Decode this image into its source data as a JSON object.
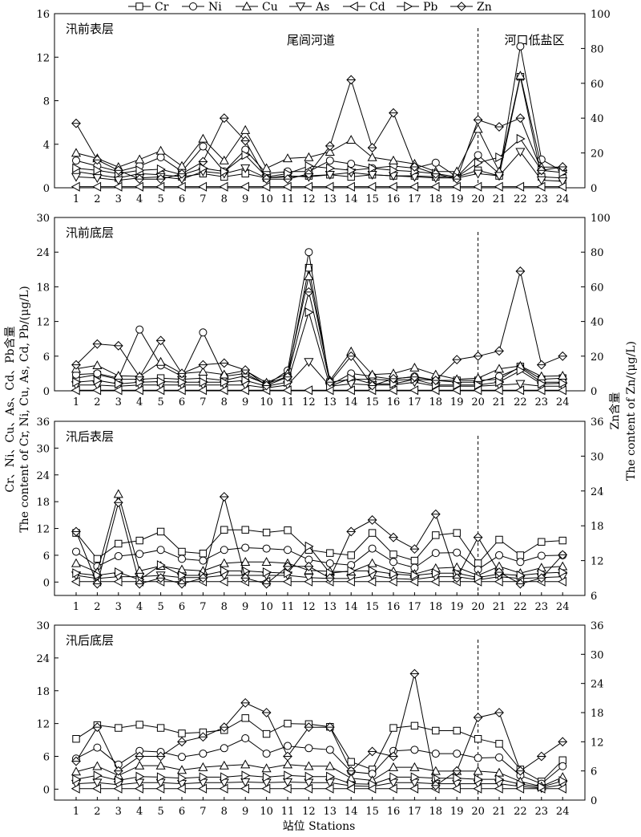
{
  "legend": [
    "Cr",
    "Ni",
    "Cu",
    "As",
    "Cd",
    "Pb",
    "Zn"
  ],
  "regions": {
    "left": "尾闾河道",
    "right": "河口低盐区",
    "divider_station": 20
  },
  "left_axis_label": [
    "Cr、Ni、Cu、As、Cd、Pb含量",
    "The content of Cr, Ni, Cu, As, Cd, Pb/(μg/L)"
  ],
  "right_axis_label": [
    "Zn含量",
    "The content of Zn/(μg/L)"
  ],
  "x_axis_label": "站位 Stations",
  "chart_data": [
    {
      "type": "line",
      "title": "汛前表层",
      "x": [
        1,
        2,
        3,
        4,
        5,
        6,
        7,
        8,
        9,
        10,
        11,
        12,
        13,
        14,
        15,
        16,
        17,
        18,
        19,
        20,
        21,
        22,
        23,
        24
      ],
      "ylim_left": [
        0,
        16
      ],
      "yticks_left": [
        0,
        4,
        8,
        12,
        16
      ],
      "ylim_right": [
        0,
        100
      ],
      "yticks_right": [
        0,
        20,
        40,
        60,
        80,
        100
      ],
      "divider": true,
      "show_regions": true,
      "series": [
        {
          "name": "Cr",
          "axis": "left",
          "values": [
            1.5,
            1.2,
            0.9,
            1.3,
            1.2,
            1.0,
            1.3,
            1.0,
            1.3,
            0.9,
            1.0,
            1.1,
            1.2,
            1.0,
            1.2,
            1.1,
            1.1,
            1.0,
            1.0,
            1.6,
            1.1,
            10.2,
            1.0,
            0.9
          ]
        },
        {
          "name": "Ni",
          "axis": "left",
          "values": [
            2.5,
            2.0,
            1.5,
            2.0,
            2.8,
            1.5,
            3.8,
            1.5,
            3.5,
            1.3,
            1.5,
            1.5,
            2.5,
            2.2,
            1.8,
            2.0,
            1.8,
            2.3,
            1.0,
            3.0,
            1.3,
            13.0,
            2.6,
            1.5
          ]
        },
        {
          "name": "Cu",
          "axis": "left",
          "values": [
            3.2,
            2.7,
            1.9,
            2.6,
            3.4,
            2.0,
            4.5,
            2.5,
            5.3,
            1.8,
            2.7,
            2.8,
            3.3,
            4.4,
            2.8,
            2.5,
            2.2,
            1.5,
            1.5,
            5.4,
            1.5,
            10.3,
            1.9,
            1.9
          ]
        },
        {
          "name": "As",
          "axis": "left",
          "values": [
            1.0,
            0.9,
            0.7,
            0.9,
            1.0,
            0.8,
            1.5,
            1.3,
            1.8,
            0.9,
            1.1,
            1.0,
            1.2,
            1.4,
            1.2,
            1.1,
            1.0,
            0.9,
            0.9,
            1.3,
            1.1,
            3.3,
            0.7,
            0.6
          ]
        },
        {
          "name": "Cd",
          "axis": "left",
          "values": [
            0.1,
            0.1,
            0.1,
            0.1,
            0.1,
            0.1,
            0.1,
            0.1,
            0.1,
            0.1,
            0.1,
            0.1,
            0.1,
            0.1,
            0.1,
            0.1,
            0.1,
            0.1,
            0.1,
            0.1,
            0.1,
            0.1,
            0.1,
            0.1
          ]
        },
        {
          "name": "Pb",
          "axis": "left",
          "values": [
            1.8,
            1.6,
            1.3,
            1.6,
            1.7,
            1.2,
            1.8,
            1.5,
            3.0,
            1.0,
            1.3,
            2.0,
            1.8,
            1.6,
            1.8,
            1.6,
            1.5,
            1.3,
            1.0,
            2.3,
            2.8,
            4.5,
            1.6,
            1.4
          ]
        },
        {
          "name": "Zn",
          "axis": "right",
          "values": [
            37,
            16,
            10,
            5,
            5,
            8,
            15,
            40,
            27,
            5,
            5,
            8,
            24,
            62,
            23,
            43,
            12,
            8,
            5,
            39,
            35,
            40,
            10,
            12
          ]
        }
      ]
    },
    {
      "type": "line",
      "title": "汛前底层",
      "x": [
        1,
        2,
        3,
        4,
        5,
        6,
        7,
        8,
        9,
        10,
        11,
        12,
        13,
        14,
        15,
        16,
        17,
        18,
        19,
        20,
        21,
        22,
        23,
        24
      ],
      "ylim_left": [
        0,
        30
      ],
      "yticks_left": [
        0,
        6,
        12,
        18,
        24,
        30
      ],
      "ylim_right": [
        0,
        100
      ],
      "yticks_right": [
        0,
        20,
        40,
        60,
        80,
        100
      ],
      "divider": true,
      "show_regions": false,
      "series": [
        {
          "name": "Cr",
          "axis": "left",
          "values": [
            2.2,
            2.8,
            2.0,
            2.0,
            2.2,
            2.0,
            2.2,
            1.8,
            2.6,
            1.2,
            2.5,
            21.3,
            1.5,
            2.0,
            2.0,
            1.8,
            2.0,
            1.8,
            1.8,
            1.8,
            2.0,
            4.2,
            2.0,
            2.2
          ]
        },
        {
          "name": "Ni",
          "axis": "left",
          "values": [
            2.8,
            3.0,
            2.2,
            10.6,
            4.4,
            2.5,
            10.1,
            2.5,
            3.0,
            1.0,
            3.5,
            24.0,
            1.0,
            3.0,
            2.5,
            2.0,
            2.5,
            1.8,
            1.5,
            1.5,
            2.5,
            4.0,
            1.5,
            1.5
          ]
        },
        {
          "name": "Cu",
          "axis": "left",
          "values": [
            3.8,
            4.4,
            2.6,
            2.5,
            5.0,
            3.0,
            3.3,
            2.8,
            3.5,
            1.4,
            3.0,
            19.8,
            1.8,
            6.8,
            2.8,
            3.0,
            4.0,
            2.8,
            2.0,
            2.2,
            3.8,
            4.3,
            2.5,
            2.6
          ]
        },
        {
          "name": "As",
          "axis": "left",
          "values": [
            1.0,
            1.0,
            0.8,
            1.0,
            1.0,
            1.0,
            1.0,
            1.0,
            1.0,
            0.5,
            1.0,
            5.0,
            0.8,
            1.2,
            1.0,
            1.0,
            1.5,
            0.8,
            0.8,
            0.8,
            1.0,
            1.2,
            0.8,
            0.8
          ]
        },
        {
          "name": "Cd",
          "axis": "left",
          "values": [
            0.1,
            0.1,
            0.1,
            0.1,
            0.1,
            0.1,
            0.1,
            0.1,
            0.1,
            0.1,
            0.1,
            0.1,
            0.1,
            0.1,
            0.1,
            0.1,
            0.1,
            0.1,
            0.1,
            0.1,
            0.1,
            0.1,
            0.1,
            0.1
          ]
        },
        {
          "name": "Pb",
          "axis": "left",
          "values": [
            1.5,
            1.8,
            1.2,
            1.5,
            1.6,
            1.5,
            1.5,
            1.5,
            1.8,
            0.8,
            1.5,
            13.6,
            0.8,
            2.2,
            1.2,
            1.2,
            2.0,
            1.0,
            1.0,
            1.0,
            1.5,
            3.5,
            1.2,
            1.3
          ]
        },
        {
          "name": "Zn",
          "axis": "right",
          "values": [
            15,
            27,
            26,
            8,
            29,
            10,
            15,
            16,
            12,
            3,
            8,
            57,
            5,
            20,
            3,
            7,
            8,
            6,
            18,
            20,
            23,
            69,
            15,
            20
          ]
        }
      ]
    },
    {
      "type": "line",
      "title": "汛后表层",
      "x": [
        1,
        2,
        3,
        4,
        5,
        6,
        7,
        8,
        9,
        10,
        11,
        12,
        13,
        14,
        15,
        16,
        17,
        18,
        19,
        20,
        21,
        22,
        23,
        24
      ],
      "ylim_left": [
        -3,
        36
      ],
      "yticks_left": [
        0,
        6,
        12,
        18,
        24,
        30,
        36
      ],
      "ylim_right": [
        6,
        36
      ],
      "yticks_right": [
        6,
        12,
        18,
        24,
        30,
        36
      ],
      "divider": true,
      "show_regions": false,
      "series": [
        {
          "name": "Cr",
          "axis": "left",
          "values": [
            11.0,
            5.2,
            8.6,
            9.3,
            11.3,
            6.8,
            6.4,
            11.7,
            11.7,
            11.1,
            11.6,
            7.2,
            6.5,
            6.0,
            11.0,
            6.2,
            4.8,
            10.5,
            11.0,
            4.2,
            9.5,
            6.0,
            9.0,
            9.3
          ]
        },
        {
          "name": "Ni",
          "axis": "left",
          "values": [
            6.8,
            3.5,
            5.8,
            6.3,
            7.2,
            5.2,
            4.8,
            7.2,
            7.7,
            7.5,
            7.2,
            5.0,
            4.2,
            3.8,
            7.5,
            4.5,
            3.2,
            6.5,
            6.6,
            2.8,
            6.0,
            4.5,
            5.9,
            6.0
          ]
        },
        {
          "name": "Cu",
          "axis": "left",
          "values": [
            4.2,
            2.2,
            19.7,
            2.5,
            3.6,
            2.8,
            2.5,
            4.2,
            4.5,
            4.5,
            4.2,
            2.6,
            2.4,
            2.3,
            4.2,
            2.4,
            1.8,
            3.1,
            3.3,
            1.5,
            3.5,
            2.0,
            3.2,
            3.5
          ]
        },
        {
          "name": "As",
          "axis": "left",
          "values": [
            1.5,
            0.8,
            1.2,
            1.2,
            1.5,
            1.0,
            1.0,
            1.5,
            1.5,
            1.5,
            1.5,
            1.0,
            0.8,
            0.8,
            1.5,
            0.8,
            0.6,
            1.2,
            1.2,
            0.5,
            1.2,
            0.8,
            1.0,
            1.2
          ]
        },
        {
          "name": "Cd",
          "axis": "left",
          "values": [
            0.1,
            0.1,
            0.1,
            0.1,
            0.1,
            0.1,
            0.1,
            0.1,
            0.1,
            0.1,
            0.1,
            0.1,
            0.1,
            0.1,
            0.1,
            0.1,
            0.1,
            0.1,
            0.1,
            0.1,
            0.1,
            0.1,
            0.1,
            0.1
          ]
        },
        {
          "name": "Pb",
          "axis": "left",
          "values": [
            2.0,
            1.5,
            2.2,
            0.5,
            3.8,
            1.5,
            1.5,
            2.5,
            2.5,
            2.2,
            2.0,
            8.0,
            2.0,
            2.5,
            2.5,
            1.8,
            1.5,
            2.0,
            2.0,
            1.0,
            1.8,
            1.5,
            2.0,
            2.2
          ]
        },
        {
          "name": "Zn",
          "axis": "right",
          "values": [
            17,
            8,
            22,
            8,
            9,
            8,
            9,
            23,
            9,
            8,
            11,
            11,
            9,
            17,
            19,
            16,
            14,
            20,
            9,
            16,
            10,
            8,
            9,
            13
          ]
        }
      ]
    },
    {
      "type": "line",
      "title": "汛后底层",
      "x": [
        1,
        2,
        3,
        4,
        5,
        6,
        7,
        8,
        9,
        10,
        11,
        12,
        13,
        14,
        15,
        16,
        17,
        18,
        19,
        20,
        21,
        22,
        23,
        24
      ],
      "ylim_left": [
        -2,
        30
      ],
      "yticks_left": [
        0,
        6,
        12,
        18,
        24,
        30
      ],
      "ylim_right": [
        0,
        36
      ],
      "yticks_right": [
        0,
        6,
        12,
        18,
        24,
        30,
        36
      ],
      "divider": true,
      "show_regions": false,
      "series": [
        {
          "name": "Cr",
          "axis": "left",
          "values": [
            9.2,
            11.7,
            11.2,
            11.8,
            11.2,
            10.2,
            10.4,
            10.8,
            13.0,
            10.1,
            12.0,
            11.9,
            11.4,
            5.0,
            3.6,
            11.2,
            11.6,
            10.7,
            10.7,
            9.2,
            8.3,
            3.6,
            1.4,
            5.3
          ]
        },
        {
          "name": "Ni",
          "axis": "left",
          "values": [
            5.6,
            7.6,
            4.5,
            7.0,
            6.8,
            5.9,
            6.5,
            7.5,
            9.3,
            6.5,
            7.9,
            7.5,
            7.2,
            3.2,
            2.8,
            7.0,
            7.2,
            6.5,
            6.5,
            5.7,
            5.8,
            2.5,
            1.0,
            4.2
          ]
        },
        {
          "name": "Cu",
          "axis": "left",
          "values": [
            3.2,
            4.2,
            2.5,
            4.3,
            4.3,
            3.5,
            4.0,
            4.3,
            4.5,
            3.8,
            4.5,
            4.2,
            4.2,
            2.0,
            1.6,
            4.0,
            4.0,
            3.3,
            3.3,
            3.3,
            3.0,
            1.4,
            0.5,
            2.2
          ]
        },
        {
          "name": "As",
          "axis": "left",
          "values": [
            1.0,
            1.2,
            0.8,
            1.2,
            1.2,
            1.0,
            1.2,
            1.2,
            1.3,
            1.2,
            1.3,
            1.2,
            1.2,
            0.6,
            0.5,
            1.2,
            1.2,
            1.0,
            1.0,
            1.0,
            1.0,
            0.5,
            0.2,
            0.8
          ]
        },
        {
          "name": "Cd",
          "axis": "left",
          "values": [
            0.1,
            0.1,
            0.1,
            0.1,
            0.1,
            0.1,
            0.1,
            0.1,
            0.1,
            0.1,
            0.1,
            0.1,
            0.1,
            0.1,
            0.1,
            0.1,
            0.1,
            0.1,
            0.1,
            0.1,
            0.1,
            0.1,
            0.1,
            0.1
          ]
        },
        {
          "name": "Pb",
          "axis": "left",
          "values": [
            1.8,
            2.5,
            1.6,
            2.3,
            2.2,
            2.0,
            2.2,
            2.2,
            2.5,
            2.2,
            2.5,
            2.3,
            2.3,
            1.0,
            0.9,
            2.2,
            2.2,
            2.0,
            2.0,
            1.8,
            1.8,
            0.9,
            0.4,
            1.5
          ]
        },
        {
          "name": "Zn",
          "axis": "right",
          "values": [
            8,
            15,
            6,
            9,
            9,
            12,
            13,
            15,
            20,
            18,
            9,
            15,
            15,
            6,
            10,
            9,
            26,
            3,
            6,
            17,
            18,
            6,
            9,
            12
          ]
        }
      ]
    }
  ]
}
